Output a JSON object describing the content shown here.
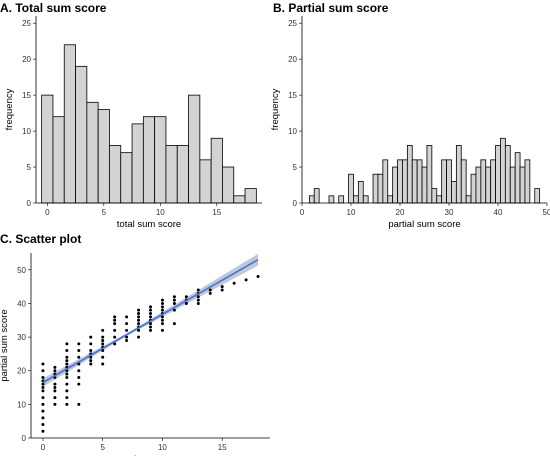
{
  "chart_data": [
    {
      "panel": "A",
      "type": "bar",
      "title": "A. Total sum score",
      "xlabel": "total sum score",
      "ylabel": "frequency",
      "x": [
        0,
        1,
        2,
        3,
        4,
        5,
        6,
        7,
        8,
        9,
        10,
        11,
        12,
        13,
        14,
        15,
        16,
        17,
        18
      ],
      "values": [
        15,
        12,
        22,
        19,
        14,
        13,
        8,
        7,
        11,
        12,
        12,
        8,
        8,
        15,
        6,
        9,
        5,
        1,
        2
      ],
      "xlim": [
        -1,
        19
      ],
      "ylim": [
        0,
        26
      ],
      "xticks": [
        0,
        5,
        10,
        15
      ],
      "yticks": [
        0,
        5,
        10,
        15,
        20,
        25
      ],
      "grid": false
    },
    {
      "panel": "B",
      "type": "bar",
      "title": "B. Partial sum score",
      "xlabel": "partial sum score",
      "ylabel": "frequency",
      "x": [
        2,
        3,
        4,
        5,
        6,
        7,
        8,
        9,
        10,
        11,
        12,
        13,
        14,
        15,
        16,
        17,
        18,
        19,
        20,
        21,
        22,
        23,
        24,
        25,
        26,
        27,
        28,
        29,
        30,
        31,
        32,
        33,
        34,
        35,
        36,
        37,
        38,
        39,
        40,
        41,
        42,
        43,
        44,
        45,
        46,
        47,
        48
      ],
      "values": [
        1,
        2,
        0,
        0,
        1,
        0,
        1,
        0,
        4,
        1,
        3,
        1,
        0,
        4,
        4,
        6,
        1,
        5,
        6,
        6,
        8,
        6,
        6,
        5,
        8,
        2,
        1,
        6,
        6,
        3,
        8,
        6,
        1,
        4,
        5,
        6,
        5,
        6,
        8,
        9,
        8,
        5,
        7,
        5,
        6,
        0,
        2
      ],
      "xlim": [
        0,
        50
      ],
      "ylim": [
        0,
        26
      ],
      "xticks": [
        0,
        10,
        20,
        30,
        40,
        50
      ],
      "yticks": [
        0,
        5,
        10,
        15,
        20,
        25
      ],
      "grid": false
    },
    {
      "panel": "C",
      "type": "scatter",
      "title": "C. Scatter plot",
      "xlabel": "total sum score",
      "ylabel": "partial sum score",
      "points": [
        [
          0,
          2
        ],
        [
          0,
          4
        ],
        [
          0,
          6
        ],
        [
          0,
          8
        ],
        [
          0,
          10
        ],
        [
          0,
          12
        ],
        [
          0,
          14
        ],
        [
          0,
          15
        ],
        [
          0,
          16
        ],
        [
          0,
          17
        ],
        [
          0,
          18
        ],
        [
          0,
          20
        ],
        [
          0,
          22
        ],
        [
          1,
          10
        ],
        [
          1,
          12
        ],
        [
          1,
          14
        ],
        [
          1,
          15
        ],
        [
          1,
          16
        ],
        [
          1,
          18
        ],
        [
          1,
          19
        ],
        [
          1,
          20
        ],
        [
          1,
          21
        ],
        [
          2,
          10
        ],
        [
          2,
          12
        ],
        [
          2,
          14
        ],
        [
          2,
          16
        ],
        [
          2,
          18
        ],
        [
          2,
          19
        ],
        [
          2,
          20
        ],
        [
          2,
          21
        ],
        [
          2,
          22
        ],
        [
          2,
          23
        ],
        [
          2,
          24
        ],
        [
          2,
          26
        ],
        [
          2,
          28
        ],
        [
          3,
          10
        ],
        [
          3,
          16
        ],
        [
          3,
          18
        ],
        [
          3,
          20
        ],
        [
          3,
          22
        ],
        [
          3,
          24
        ],
        [
          3,
          26
        ],
        [
          3,
          28
        ],
        [
          4,
          22
        ],
        [
          4,
          23
        ],
        [
          4,
          24
        ],
        [
          4,
          25
        ],
        [
          4,
          26
        ],
        [
          4,
          28
        ],
        [
          4,
          30
        ],
        [
          5,
          22
        ],
        [
          5,
          24
        ],
        [
          5,
          26
        ],
        [
          5,
          27
        ],
        [
          5,
          28
        ],
        [
          5,
          29
        ],
        [
          5,
          30
        ],
        [
          5,
          32
        ],
        [
          6,
          28
        ],
        [
          6,
          30
        ],
        [
          6,
          32
        ],
        [
          6,
          34
        ],
        [
          6,
          35
        ],
        [
          6,
          36
        ],
        [
          7,
          29
        ],
        [
          7,
          30
        ],
        [
          7,
          32
        ],
        [
          7,
          34
        ],
        [
          7,
          36
        ],
        [
          8,
          30
        ],
        [
          8,
          32
        ],
        [
          8,
          33
        ],
        [
          8,
          34
        ],
        [
          8,
          35
        ],
        [
          8,
          36
        ],
        [
          8,
          37
        ],
        [
          8,
          38
        ],
        [
          9,
          32
        ],
        [
          9,
          33
        ],
        [
          9,
          34
        ],
        [
          9,
          35
        ],
        [
          9,
          36
        ],
        [
          9,
          37
        ],
        [
          9,
          38
        ],
        [
          9,
          39
        ],
        [
          10,
          32
        ],
        [
          10,
          34
        ],
        [
          10,
          35
        ],
        [
          10,
          36
        ],
        [
          10,
          37
        ],
        [
          10,
          38
        ],
        [
          10,
          39
        ],
        [
          10,
          40
        ],
        [
          10,
          41
        ],
        [
          11,
          34
        ],
        [
          11,
          38
        ],
        [
          11,
          40
        ],
        [
          11,
          41
        ],
        [
          11,
          42
        ],
        [
          12,
          40
        ],
        [
          12,
          41
        ],
        [
          12,
          42
        ],
        [
          13,
          40
        ],
        [
          13,
          41
        ],
        [
          13,
          42
        ],
        [
          13,
          43
        ],
        [
          13,
          44
        ],
        [
          14,
          43
        ],
        [
          14,
          44
        ],
        [
          15,
          44
        ],
        [
          15,
          45
        ],
        [
          16,
          46
        ],
        [
          17,
          47
        ],
        [
          18,
          48
        ]
      ],
      "fit_line": {
        "x": [
          0,
          18
        ],
        "y": [
          16.5,
          53
        ]
      },
      "xlim": [
        -1,
        19
      ],
      "ylim": [
        0,
        55
      ],
      "xticks": [
        0,
        5,
        10,
        15
      ],
      "yticks": [
        0,
        10,
        20,
        30,
        40,
        50
      ],
      "grid": false
    }
  ]
}
